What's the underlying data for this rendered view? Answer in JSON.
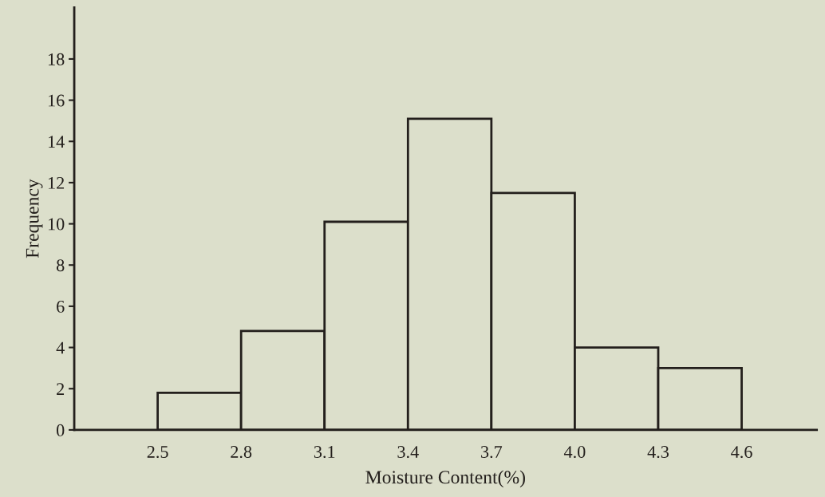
{
  "chart_data": {
    "type": "histogram",
    "xlabel": "Moisture Content(%)",
    "ylabel": "Frequency",
    "bins": [
      2.5,
      2.8,
      3.1,
      3.4,
      3.7,
      4.0,
      4.3,
      4.6
    ],
    "values": [
      1.8,
      4.8,
      10.1,
      15.1,
      11.5,
      4,
      3
    ],
    "color": "#dcdfcb",
    "xlim": [
      2.2,
      4.87
    ],
    "xticks": [
      2.5,
      2.8,
      3.1,
      3.4,
      3.7,
      {
        "value": 4.0,
        "label": "4.0"
      },
      4.3,
      4.6
    ],
    "ylim": [
      0,
      20.5
    ],
    "yticks": [
      0,
      2,
      4,
      6,
      8,
      10,
      12,
      14,
      16,
      18
    ],
    "grid": false
  }
}
